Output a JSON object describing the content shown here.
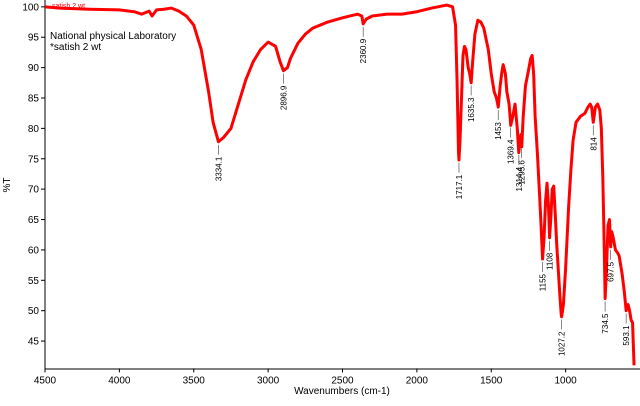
{
  "chart_data": {
    "type": "line",
    "legend_text": "satish 2 wt",
    "annotations": [
      "National physical Laboratory",
      "*satish 2 wt"
    ],
    "xlabel": "Wavenumbers (cm-1)",
    "ylabel": "%T",
    "xlim": [
      4500,
      500
    ],
    "ylim": [
      40.5,
      100.8
    ],
    "xticks": [
      4500,
      4000,
      3500,
      3000,
      2500,
      2000,
      1500,
      1000
    ],
    "yticks": [
      45,
      50,
      55,
      60,
      65,
      70,
      75,
      80,
      85,
      90,
      95,
      100
    ],
    "peaks": [
      3334.1,
      2896.9,
      2360.9,
      1717.1,
      1635.3,
      1453.0,
      1369.4,
      1314.4,
      1295.6,
      1155.0,
      1108.0,
      1027.2,
      814.0,
      734.5,
      697.5,
      593.1
    ],
    "series": [
      {
        "name": "satish 2 wt",
        "color": "#ff0000",
        "x": [
          4500,
          4400,
          4200,
          4000,
          3900,
          3850,
          3800,
          3780,
          3750,
          3700,
          3650,
          3600,
          3550,
          3500,
          3450,
          3400,
          3370,
          3334,
          3300,
          3250,
          3200,
          3150,
          3100,
          3050,
          3000,
          2950,
          2920,
          2897,
          2870,
          2850,
          2800,
          2750,
          2700,
          2600,
          2500,
          2400,
          2370,
          2361,
          2340,
          2300,
          2200,
          2100,
          2000,
          1900,
          1800,
          1760,
          1740,
          1730,
          1720,
          1717,
          1710,
          1700,
          1690,
          1680,
          1670,
          1655,
          1645,
          1635,
          1625,
          1610,
          1590,
          1570,
          1550,
          1520,
          1500,
          1480,
          1465,
          1453,
          1440,
          1430,
          1420,
          1405,
          1395,
          1380,
          1369,
          1355,
          1340,
          1325,
          1315,
          1310,
          1300,
          1295,
          1285,
          1270,
          1250,
          1235,
          1225,
          1215,
          1205,
          1190,
          1175,
          1165,
          1155,
          1145,
          1135,
          1125,
          1115,
          1108,
          1100,
          1090,
          1080,
          1070,
          1060,
          1050,
          1040,
          1030,
          1027,
          1015,
          1000,
          990,
          980,
          965,
          950,
          930,
          900,
          870,
          850,
          835,
          825,
          814,
          800,
          785,
          770,
          760,
          750,
          740,
          734.5,
          725,
          715,
          705,
          697.5,
          690,
          680,
          665,
          650,
          640,
          620,
          605,
          593,
          580,
          570,
          560,
          550,
          540
        ],
        "values": [
          100,
          99.8,
          99.6,
          99.5,
          99.2,
          98.8,
          99.3,
          98.5,
          99.5,
          99.6,
          99.8,
          99.3,
          98.5,
          97,
          93,
          86,
          81,
          77.8,
          78.5,
          80,
          84,
          88,
          91,
          93,
          94.2,
          93.5,
          91,
          89.5,
          90,
          91.5,
          94,
          95.5,
          96.5,
          97.5,
          98.2,
          98.8,
          98.5,
          97.2,
          98,
          98.5,
          98.8,
          98.8,
          99.2,
          99.8,
          100.3,
          100,
          97,
          88,
          76,
          74.8,
          78,
          85,
          92,
          93.5,
          93,
          90,
          89,
          87.5,
          91,
          95.5,
          97.8,
          97.5,
          96.5,
          93,
          89,
          86,
          85,
          83.5,
          87,
          89,
          90.5,
          89,
          86,
          84,
          80.5,
          82,
          84,
          80,
          76,
          77,
          79,
          77,
          82,
          87,
          89.5,
          91.5,
          92,
          89,
          82,
          76,
          69,
          64,
          58.5,
          62,
          68,
          71,
          67,
          62,
          65,
          70,
          70.5,
          66,
          61,
          57,
          53,
          49.5,
          49,
          51,
          57,
          62,
          67,
          73,
          78,
          81,
          82,
          82.5,
          83.5,
          84,
          83.5,
          81,
          83.5,
          84,
          83,
          80,
          72,
          60,
          52,
          57,
          64,
          65,
          60.5,
          63,
          62,
          60,
          59.5,
          59,
          56,
          53,
          50,
          51,
          50,
          48.5,
          48,
          41
        ]
      }
    ]
  }
}
